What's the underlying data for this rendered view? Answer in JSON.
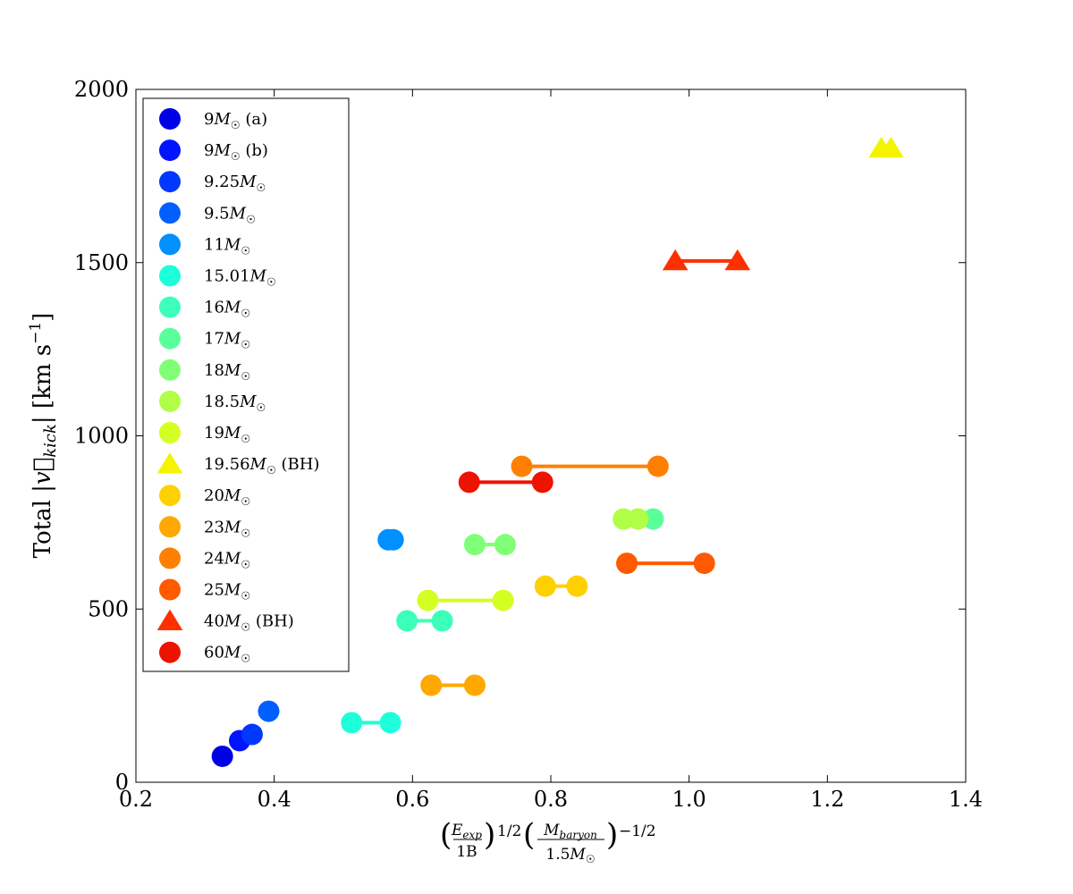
{
  "chart_data": {
    "type": "scatter",
    "title": "",
    "xlabel": "(E_exp / 1B)^(1/2) (M_baryon / 1.5 M_sun)^(-1/2)",
    "ylabel": "Total |v_kick| [km s^-1]",
    "xlim": [
      0.2,
      1.4
    ],
    "ylim": [
      0,
      2000
    ],
    "x_ticks": [
      "0.2",
      "0.4",
      "0.6",
      "0.8",
      "1.0",
      "1.2",
      "1.4"
    ],
    "y_ticks": [
      "0",
      "500",
      "1000",
      "1500",
      "2000"
    ],
    "legend_position": "top-left",
    "series": [
      {
        "name": "9M☉ (a)",
        "mass": "9",
        "suffix": "(a)",
        "marker": "circle",
        "color": "#0000e6",
        "points": [
          [
            0.325,
            75
          ]
        ]
      },
      {
        "name": "9M☉ (b)",
        "mass": "9",
        "suffix": "(b)",
        "marker": "circle",
        "color": "#0014ff",
        "points": [
          [
            0.35,
            120
          ]
        ]
      },
      {
        "name": "9.25M☉",
        "mass": "9.25",
        "suffix": "",
        "marker": "circle",
        "color": "#0038ff",
        "points": [
          [
            0.368,
            138
          ]
        ]
      },
      {
        "name": "9.5M☉",
        "mass": "9.5",
        "suffix": "",
        "marker": "circle",
        "color": "#0060ff",
        "points": [
          [
            0.392,
            205
          ]
        ]
      },
      {
        "name": "11M☉",
        "mass": "11",
        "suffix": "",
        "marker": "circle",
        "color": "#0090ff",
        "points": [
          [
            0.565,
            700
          ],
          [
            0.572,
            700
          ]
        ]
      },
      {
        "name": "15.01M☉",
        "mass": "15.01",
        "suffix": "",
        "marker": "circle",
        "color": "#1cffda",
        "points": [
          [
            0.512,
            172
          ],
          [
            0.568,
            172
          ]
        ]
      },
      {
        "name": "16M☉",
        "mass": "16",
        "suffix": "",
        "marker": "circle",
        "color": "#3cffba",
        "points": [
          [
            0.592,
            466
          ],
          [
            0.643,
            466
          ]
        ]
      },
      {
        "name": "17M☉",
        "mass": "17",
        "suffix": "",
        "marker": "circle",
        "color": "#5aff9c",
        "points": [
          [
            0.948,
            760
          ]
        ]
      },
      {
        "name": "18M☉",
        "mass": "18",
        "suffix": "",
        "marker": "circle",
        "color": "#80ff76",
        "points": [
          [
            0.69,
            686
          ],
          [
            0.734,
            686
          ]
        ]
      },
      {
        "name": "18.5M☉",
        "mass": "18.5",
        "suffix": "",
        "marker": "circle",
        "color": "#b0ff46",
        "points": [
          [
            0.905,
            760
          ],
          [
            0.926,
            760
          ]
        ]
      },
      {
        "name": "19M☉",
        "mass": "19",
        "suffix": "",
        "marker": "circle",
        "color": "#d4ff22",
        "points": [
          [
            0.622,
            525
          ],
          [
            0.731,
            525
          ]
        ]
      },
      {
        "name": "19.56M☉ (BH)",
        "mass": "19.56",
        "suffix": "(BH)",
        "marker": "triangle",
        "color": "#f4f400",
        "points": [
          [
            1.278,
            1830
          ],
          [
            1.292,
            1830
          ]
        ]
      },
      {
        "name": "20M☉",
        "mass": "20",
        "suffix": "",
        "marker": "circle",
        "color": "#ffd000",
        "points": [
          [
            0.792,
            566
          ],
          [
            0.838,
            566
          ]
        ]
      },
      {
        "name": "23M☉",
        "mass": "23",
        "suffix": "",
        "marker": "circle",
        "color": "#ffa800",
        "points": [
          [
            0.627,
            280
          ],
          [
            0.69,
            280
          ]
        ]
      },
      {
        "name": "24M☉",
        "mass": "24",
        "suffix": "",
        "marker": "circle",
        "color": "#ff8000",
        "points": [
          [
            0.758,
            912
          ],
          [
            0.955,
            912
          ]
        ]
      },
      {
        "name": "25M☉",
        "mass": "25",
        "suffix": "",
        "marker": "circle",
        "color": "#ff5a00",
        "points": [
          [
            0.91,
            632
          ],
          [
            1.022,
            632
          ]
        ]
      },
      {
        "name": "40M☉ (BH)",
        "mass": "40",
        "suffix": "(BH)",
        "marker": "triangle",
        "color": "#ff3000",
        "points": [
          [
            0.98,
            1505
          ],
          [
            1.07,
            1505
          ]
        ]
      },
      {
        "name": "60M☉",
        "mass": "60",
        "suffix": "",
        "marker": "circle",
        "color": "#ee1200",
        "points": [
          [
            0.682,
            866
          ],
          [
            0.788,
            866
          ]
        ]
      }
    ]
  }
}
